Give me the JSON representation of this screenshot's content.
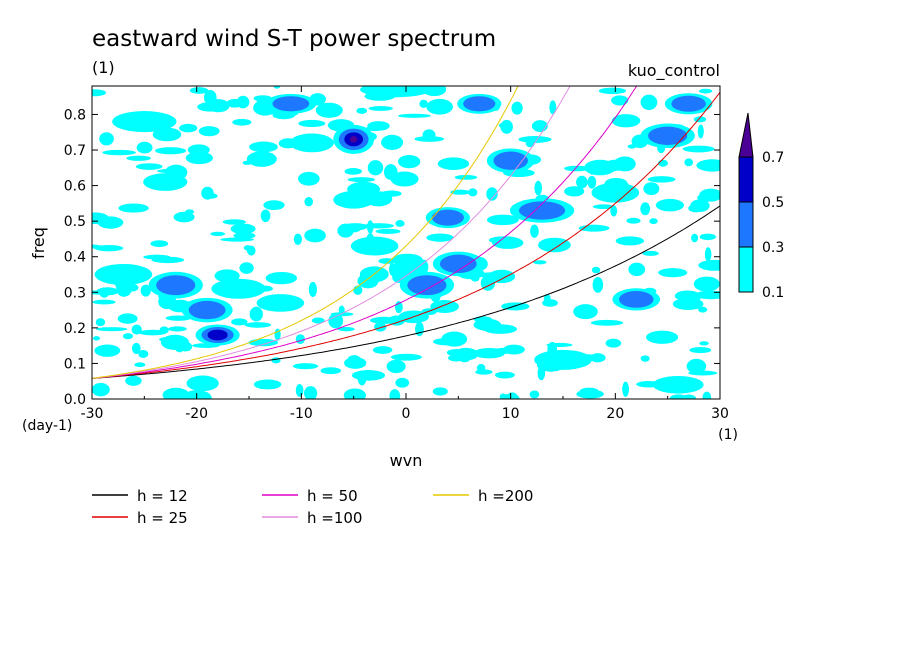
{
  "chart_data": {
    "type": "heatmap",
    "title": "eastward wind S-T power spectrum",
    "subtitle_left": "(1)",
    "subtitle_right": "kuo_control",
    "xlabel": "wvn",
    "ylabel": "freq",
    "x_unit": "(1)",
    "y_unit": "(day-1)",
    "xlim": [
      -30,
      30
    ],
    "ylim": [
      0,
      0.88
    ],
    "x_ticks": [
      -30,
      -20,
      -10,
      0,
      10,
      20,
      30
    ],
    "x_tick_labels": [
      "-30",
      "-20",
      "-10",
      "0",
      "10",
      "20",
      "30"
    ],
    "y_ticks": [
      0,
      0.1,
      0.2,
      0.3,
      0.4,
      0.5,
      0.6,
      0.7,
      0.8
    ],
    "y_tick_labels": [
      "0.0",
      "0.1",
      "0.2",
      "0.3",
      "0.4",
      "0.5",
      "0.6",
      "0.7",
      "0.8"
    ],
    "colorbar": {
      "levels": [
        "0.1",
        "0.3",
        "0.5",
        "0.7"
      ],
      "colors": [
        "#00ffff",
        "#1e78ff",
        "#0000c8",
        "#4b0096"
      ]
    },
    "dispersion_curves": [
      {
        "name": "h = 12",
        "h": 12,
        "color": "#000000"
      },
      {
        "name": "h = 25",
        "h": 25,
        "color": "#e00000"
      },
      {
        "name": "h = 50",
        "h": 50,
        "color": "#e000c8"
      },
      {
        "name": "h =100",
        "h": 100,
        "color": "#e08ce0"
      },
      {
        "name": "h =200",
        "h": 200,
        "color": "#e6c800"
      }
    ],
    "blobs": [
      {
        "x": -25,
        "y": 0.78,
        "level": 0.1,
        "rx": 1.8,
        "ry": 0.015
      },
      {
        "x": -23,
        "y": 0.61,
        "level": 0.1,
        "rx": 1.2,
        "ry": 0.012
      },
      {
        "x": -27,
        "y": 0.35,
        "level": 0.1,
        "rx": 1.6,
        "ry": 0.015
      },
      {
        "x": -22,
        "y": 0.32,
        "level": 0.3,
        "rx": 1.5,
        "ry": 0.02
      },
      {
        "x": -19,
        "y": 0.25,
        "level": 0.3,
        "rx": 1.4,
        "ry": 0.018
      },
      {
        "x": -18,
        "y": 0.18,
        "level": 0.5,
        "rx": 1.2,
        "ry": 0.015
      },
      {
        "x": -16,
        "y": 0.31,
        "level": 0.1,
        "rx": 1.5,
        "ry": 0.014
      },
      {
        "x": -12,
        "y": 0.27,
        "level": 0.1,
        "rx": 1.3,
        "ry": 0.012
      },
      {
        "x": -11,
        "y": 0.83,
        "level": 0.3,
        "rx": 1.4,
        "ry": 0.014
      },
      {
        "x": -9,
        "y": 0.72,
        "level": 0.1,
        "rx": 1.2,
        "ry": 0.013
      },
      {
        "x": -5,
        "y": 0.73,
        "level": 0.7,
        "rx": 1.1,
        "ry": 0.022
      },
      {
        "x": -5,
        "y": 0.56,
        "level": 0.1,
        "rx": 1.1,
        "ry": 0.012
      },
      {
        "x": -3,
        "y": 0.43,
        "level": 0.1,
        "rx": 1.3,
        "ry": 0.013
      },
      {
        "x": -1,
        "y": 0.87,
        "level": 0.1,
        "rx": 2,
        "ry": 0.01
      },
      {
        "x": 2,
        "y": 0.32,
        "level": 0.3,
        "rx": 1.5,
        "ry": 0.02
      },
      {
        "x": 4,
        "y": 0.51,
        "level": 0.3,
        "rx": 1.2,
        "ry": 0.015
      },
      {
        "x": 5,
        "y": 0.38,
        "level": 0.3,
        "rx": 1.4,
        "ry": 0.018
      },
      {
        "x": 7,
        "y": 0.83,
        "level": 0.3,
        "rx": 1.2,
        "ry": 0.014
      },
      {
        "x": 10,
        "y": 0.67,
        "level": 0.3,
        "rx": 1.3,
        "ry": 0.018
      },
      {
        "x": 13,
        "y": 0.53,
        "level": 0.3,
        "rx": 1.8,
        "ry": 0.018
      },
      {
        "x": 15,
        "y": 0.11,
        "level": 0.1,
        "rx": 1.6,
        "ry": 0.014
      },
      {
        "x": 20,
        "y": 0.58,
        "level": 0.1,
        "rx": 1.3,
        "ry": 0.014
      },
      {
        "x": 22,
        "y": 0.28,
        "level": 0.3,
        "rx": 1.3,
        "ry": 0.016
      },
      {
        "x": 25,
        "y": 0.74,
        "level": 0.3,
        "rx": 1.5,
        "ry": 0.018
      },
      {
        "x": 26,
        "y": 0.04,
        "level": 0.1,
        "rx": 1.4,
        "ry": 0.012
      },
      {
        "x": 27,
        "y": 0.83,
        "level": 0.3,
        "rx": 1.3,
        "ry": 0.015
      }
    ]
  }
}
